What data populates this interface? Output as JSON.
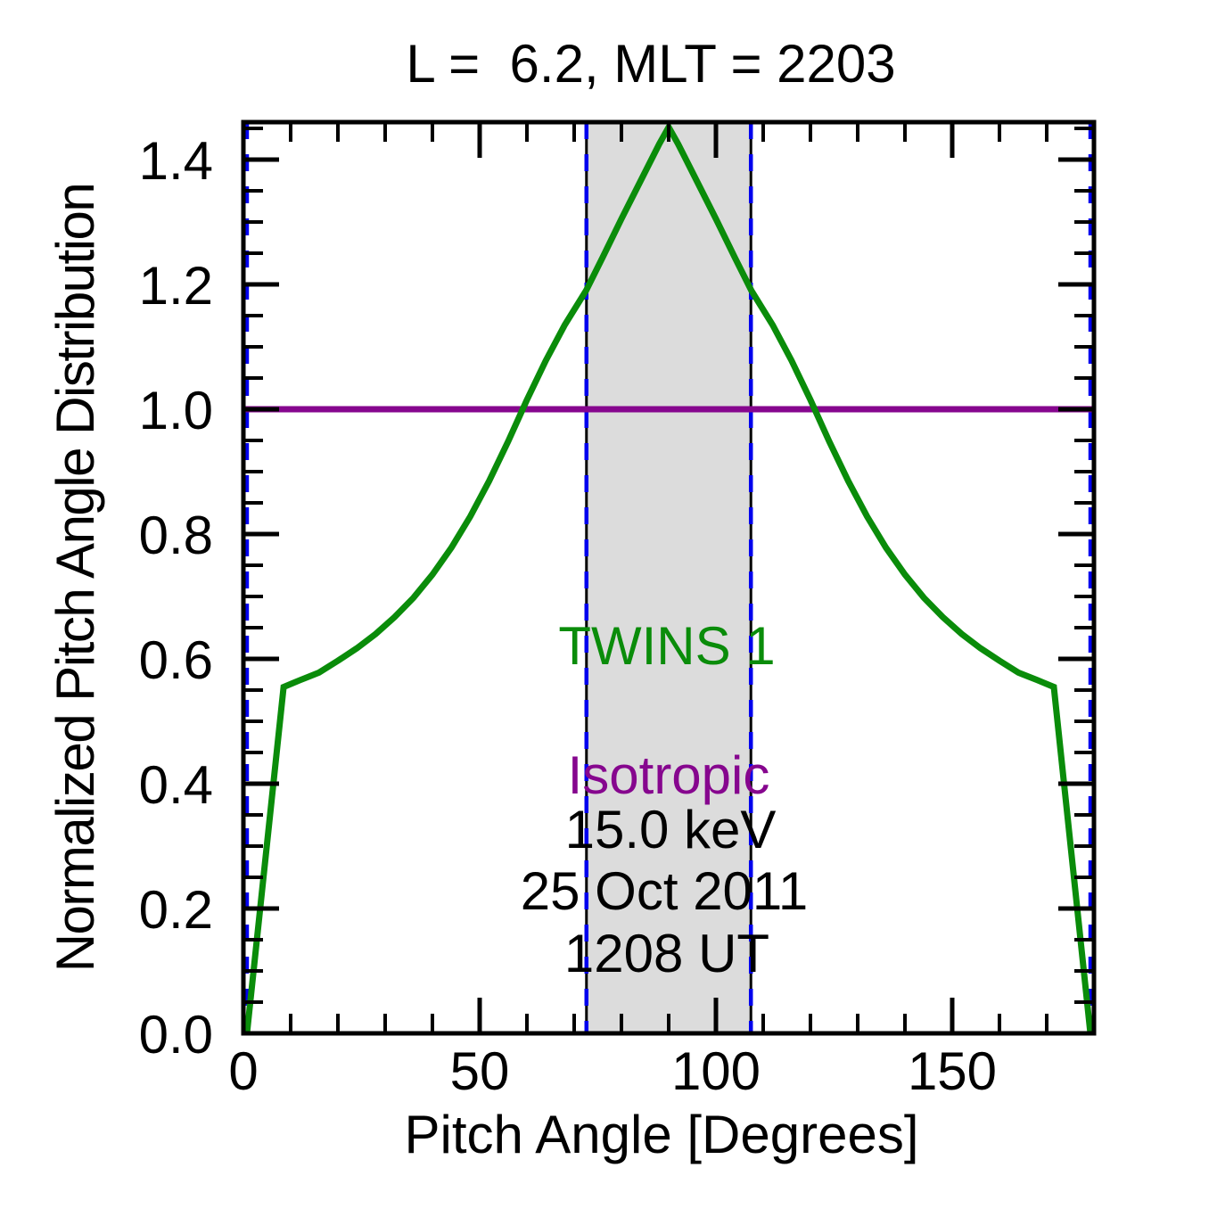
{
  "title": "L =  6.2, MLT = 2203",
  "colors": {
    "twins_green": "#0a8c0a",
    "isotropic_purple": "#86068e",
    "guide_blue": "#0000ee",
    "band_gray": "#dcdcdc",
    "axis_black": "#000000"
  },
  "annotations": {
    "twins_label": "TWINS 1",
    "isotropic_label": "Isotropic",
    "energy": "15.0 keV",
    "date": "25 Oct 2011",
    "time": "1208 UT"
  },
  "chart_data": {
    "type": "line",
    "title": "L =  6.2, MLT = 2203",
    "xlabel": "Pitch Angle [Degrees]",
    "ylabel": "Normalized Pitch Angle Distribution",
    "xlim": [
      0,
      180
    ],
    "ylim": [
      0,
      1.46
    ],
    "grid": false,
    "legend_position": "inline-annotations",
    "x_major_ticks": [
      0,
      50,
      100,
      150
    ],
    "x_tick_labels": [
      "0",
      "50",
      "100",
      "150"
    ],
    "x_minor_step": 10,
    "y_major_ticks": [
      0.0,
      0.2,
      0.4,
      0.6,
      0.8,
      1.0,
      1.2,
      1.4
    ],
    "y_tick_labels": [
      "0.0",
      "0.2",
      "0.4",
      "0.6",
      "0.8",
      "1.0",
      "1.2",
      "1.4"
    ],
    "y_minor_step": 0.05,
    "shaded_band": {
      "x0": 72.6,
      "x1": 107.4,
      "fill": "#dcdcdc"
    },
    "guide_lines_x": [
      0.75,
      72.6,
      107.4,
      179.25
    ],
    "series": [
      {
        "name": "TWINS 1",
        "color": "#0a8c0a",
        "points": [
          [
            0.75,
            0.0
          ],
          [
            8.5,
            0.555
          ],
          [
            12,
            0.566
          ],
          [
            16,
            0.578
          ],
          [
            20,
            0.597
          ],
          [
            24,
            0.617
          ],
          [
            28,
            0.64
          ],
          [
            32,
            0.667
          ],
          [
            36,
            0.698
          ],
          [
            40,
            0.735
          ],
          [
            44,
            0.778
          ],
          [
            48,
            0.828
          ],
          [
            52,
            0.885
          ],
          [
            56,
            0.948
          ],
          [
            60,
            1.015
          ],
          [
            64,
            1.078
          ],
          [
            68,
            1.135
          ],
          [
            72.5,
            1.19
          ],
          [
            76,
            1.243
          ],
          [
            80,
            1.305
          ],
          [
            84,
            1.365
          ],
          [
            88,
            1.425
          ],
          [
            90,
            1.452
          ],
          [
            92,
            1.425
          ],
          [
            96,
            1.365
          ],
          [
            100,
            1.305
          ],
          [
            104,
            1.243
          ],
          [
            107.5,
            1.19
          ],
          [
            112,
            1.135
          ],
          [
            116,
            1.078
          ],
          [
            120,
            1.015
          ],
          [
            124,
            0.948
          ],
          [
            128,
            0.885
          ],
          [
            132,
            0.828
          ],
          [
            136,
            0.778
          ],
          [
            140,
            0.735
          ],
          [
            144,
            0.698
          ],
          [
            148,
            0.667
          ],
          [
            152,
            0.64
          ],
          [
            156,
            0.617
          ],
          [
            160,
            0.597
          ],
          [
            164,
            0.578
          ],
          [
            168,
            0.566
          ],
          [
            171.5,
            0.555
          ],
          [
            179.25,
            0.0
          ]
        ]
      },
      {
        "name": "Isotropic",
        "color": "#86068e",
        "points": [
          [
            0,
            1.0
          ],
          [
            180,
            1.0
          ]
        ]
      }
    ]
  }
}
